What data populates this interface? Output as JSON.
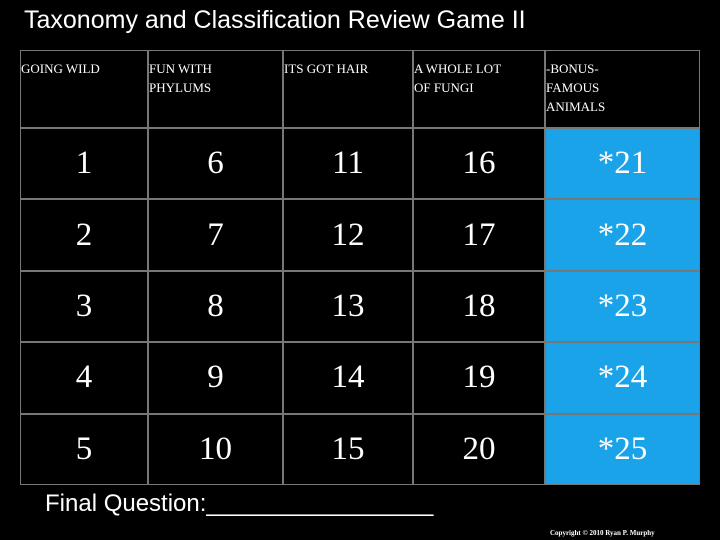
{
  "title": "Taxonomy and Classification Review Game II",
  "board": {
    "columns": [
      {
        "header": [
          "GOING WILD"
        ],
        "cells": [
          "1",
          "2",
          "3",
          "4",
          "5"
        ]
      },
      {
        "header": [
          "FUN WITH",
          "PHYLUMS"
        ],
        "cells": [
          "6",
          "7",
          "8",
          "9",
          "10"
        ]
      },
      {
        "header": [
          "ITS GOT HAIR"
        ],
        "cells": [
          "11",
          "12",
          "13",
          "14",
          "15"
        ]
      },
      {
        "header": [
          "A WHOLE LOT",
          "OF FUNGI"
        ],
        "cells": [
          "16",
          "17",
          "18",
          "19",
          "20"
        ]
      },
      {
        "header": [
          "-BONUS-",
          "FAMOUS",
          "ANIMALS"
        ],
        "cells": [
          "*21",
          "*22",
          "*23",
          "*24",
          "*25"
        ]
      }
    ]
  },
  "final_question": "Final Question:_________________",
  "copyright": "Copyright © 2010 Ryan P. Murphy"
}
